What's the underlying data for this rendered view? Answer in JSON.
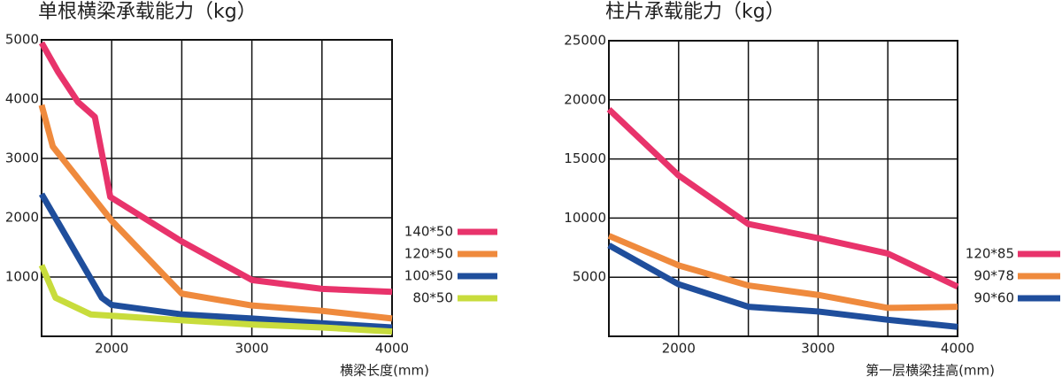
{
  "chart_data": [
    {
      "type": "line",
      "title": "单根横梁承载能力（kg）",
      "x_label": "横梁长度(mm)",
      "xlim": [
        1500,
        4000
      ],
      "xticks": [
        2000,
        3000,
        4000
      ],
      "ylim": [
        0,
        5000
      ],
      "yticks": [
        1000,
        2000,
        3000,
        4000,
        5000
      ],
      "grid": true,
      "series": [
        {
          "name": "140*50",
          "color": "#e8336b",
          "x": [
            1500,
            1620,
            1760,
            1880,
            1990,
            2500,
            3000,
            3500,
            4000
          ],
          "values": [
            4950,
            4450,
            3950,
            3700,
            2350,
            1600,
            950,
            800,
            750
          ]
        },
        {
          "name": "120*50",
          "color": "#ef8a3d",
          "x": [
            1500,
            1580,
            2000,
            2500,
            3000,
            3500,
            4000
          ],
          "values": [
            3900,
            3200,
            1950,
            720,
            520,
            430,
            300
          ]
        },
        {
          "name": "100*50",
          "color": "#1f4e9c",
          "x": [
            1500,
            1930,
            2000,
            2500,
            3000,
            3500,
            4000
          ],
          "values": [
            2400,
            650,
            530,
            370,
            300,
            220,
            150
          ]
        },
        {
          "name": "80*50",
          "color": "#c8dc3c",
          "x": [
            1500,
            1600,
            1850,
            2500,
            3000,
            3500,
            4000
          ],
          "values": [
            1200,
            650,
            370,
            270,
            200,
            150,
            80
          ]
        }
      ]
    },
    {
      "type": "line",
      "title": "柱片承载能力（kg）",
      "x_label": "第一层横梁挂高(mm)",
      "xlim": [
        1500,
        4000
      ],
      "xticks": [
        2000,
        3000,
        4000
      ],
      "ylim": [
        0,
        25000
      ],
      "yticks": [
        5000,
        10000,
        15000,
        20000,
        25000
      ],
      "grid": true,
      "series": [
        {
          "name": "120*85",
          "color": "#e8336b",
          "x": [
            1500,
            2000,
            2500,
            3000,
            3500,
            4000
          ],
          "values": [
            19200,
            13600,
            9500,
            8300,
            7000,
            4200
          ]
        },
        {
          "name": "90*78",
          "color": "#ef8a3d",
          "x": [
            1500,
            2000,
            2500,
            3000,
            3500,
            4000
          ],
          "values": [
            8500,
            6000,
            4300,
            3500,
            2400,
            2500
          ]
        },
        {
          "name": "90*60",
          "color": "#1f4e9c",
          "x": [
            1500,
            2000,
            2500,
            3000,
            3500,
            4000
          ],
          "values": [
            7700,
            4400,
            2500,
            2100,
            1400,
            800
          ]
        }
      ]
    }
  ]
}
